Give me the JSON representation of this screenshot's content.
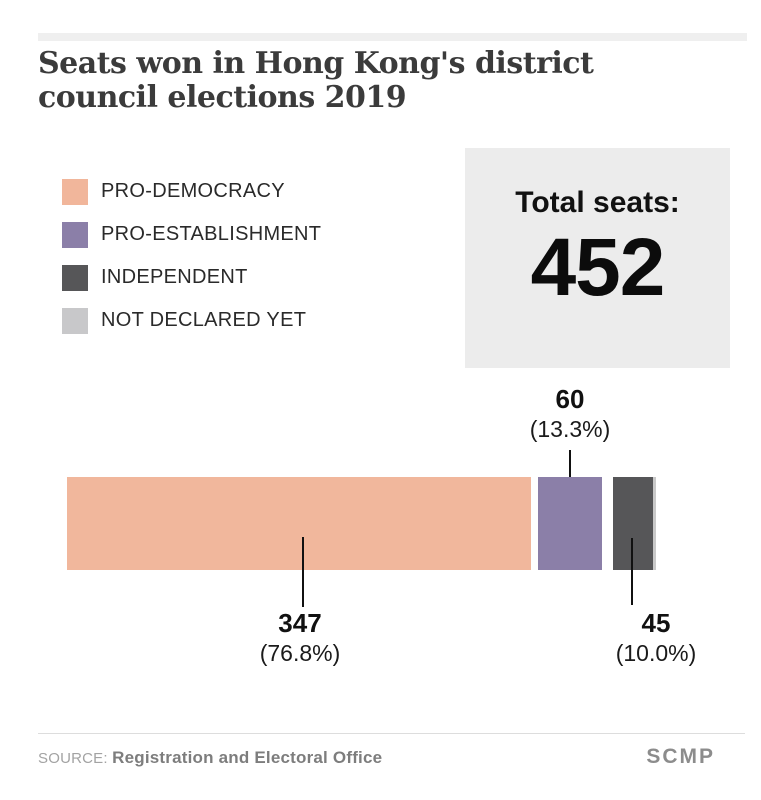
{
  "header": {
    "title": "Seats won in Hong Kong's district council elections 2019"
  },
  "legend": {
    "items": [
      {
        "label": "PRO-DEMOCRACY",
        "color": "#f1b69b"
      },
      {
        "label": "PRO-ESTABLISHMENT",
        "color": "#8b7fa8"
      },
      {
        "label": "INDEPENDENT",
        "color": "#565658"
      },
      {
        "label": "NOT DECLARED YET",
        "color": "#c8c8ca"
      }
    ]
  },
  "total_box": {
    "label": "Total seats:",
    "value": "452"
  },
  "chart_data": {
    "type": "bar",
    "orientation": "horizontal",
    "title": "Seats won in Hong Kong's district council elections 2019",
    "total_seats": 452,
    "categories": [
      "PRO-DEMOCRACY",
      "PRO-ESTABLISHMENT",
      "INDEPENDENT",
      "NOT DECLARED YET"
    ],
    "series": [
      {
        "name": "PRO-DEMOCRACY",
        "seats": 347,
        "percent": 76.8,
        "color": "#f1b69b"
      },
      {
        "name": "PRO-ESTABLISHMENT",
        "seats": 60,
        "percent": 13.3,
        "color": "#8b7fa8"
      },
      {
        "name": "INDEPENDENT",
        "seats": 45,
        "percent": 10.0,
        "color": "#565658"
      },
      {
        "name": "NOT DECLARED YET",
        "seats": 0,
        "percent": 0,
        "color": "#c8c8ca"
      }
    ],
    "legend_position": "top-left",
    "grid": false
  },
  "annotations": {
    "pro_democracy": {
      "value": "347",
      "percent": "(76.8%)"
    },
    "pro_establishment": {
      "value": "60",
      "percent": "(13.3%)"
    },
    "independent": {
      "value": "45",
      "percent": "(10.0%)"
    }
  },
  "footer": {
    "source_prefix": "SOURCE:",
    "source": "Registration and Electoral Office",
    "brand": "SCMP"
  }
}
